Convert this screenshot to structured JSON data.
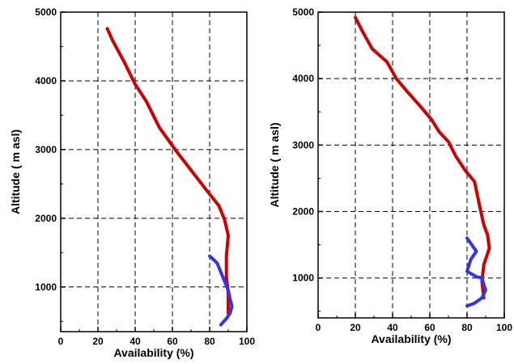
{
  "chart_data": [
    {
      "type": "line",
      "xlabel": "Availability (%)",
      "ylabel": "Altitude ( m asl)",
      "xlim": [
        0,
        100
      ],
      "ylim": [
        350,
        5000
      ],
      "xticks": [
        0,
        20,
        40,
        60,
        80,
        100
      ],
      "yticks": [
        1000,
        2000,
        3000,
        4000,
        5000
      ],
      "grid": true,
      "series": [
        {
          "color": "#cc0000",
          "points": [
            [
              25,
              4760
            ],
            [
              28,
              4580
            ],
            [
              34,
              4280
            ],
            [
              40,
              3950
            ],
            [
              46,
              3700
            ],
            [
              53,
              3320
            ],
            [
              62,
              2980
            ],
            [
              70,
              2700
            ],
            [
              78,
              2420
            ],
            [
              85,
              2180
            ],
            [
              88,
              1980
            ],
            [
              90,
              1750
            ],
            [
              89,
              1450
            ],
            [
              89,
              1150
            ],
            [
              90,
              900
            ],
            [
              90,
              800
            ],
            [
              90,
              620
            ]
          ]
        },
        {
          "color": "#3333ee",
          "points": [
            [
              80,
              1450
            ],
            [
              84,
              1350
            ],
            [
              87,
              1150
            ],
            [
              90,
              950
            ],
            [
              91,
              820
            ],
            [
              92,
              720
            ],
            [
              91,
              620
            ],
            [
              89,
              540
            ],
            [
              86,
              450
            ]
          ]
        }
      ]
    },
    {
      "type": "line",
      "xlabel": "Availability (%)",
      "ylabel": "Altitude ( m asl)",
      "xlim": [
        0,
        100
      ],
      "ylim": [
        400,
        5000
      ],
      "xticks": [
        0,
        20,
        40,
        60,
        80,
        100
      ],
      "yticks": [
        1000,
        2000,
        3000,
        4000,
        5000
      ],
      "grid": true,
      "series": [
        {
          "color": "#cc0000",
          "points": [
            [
              20,
              4920
            ],
            [
              24,
              4700
            ],
            [
              29,
              4450
            ],
            [
              37,
              4250
            ],
            [
              42,
              4000
            ],
            [
              48,
              3800
            ],
            [
              55,
              3580
            ],
            [
              61,
              3380
            ],
            [
              65,
              3200
            ],
            [
              70,
              3050
            ],
            [
              74,
              2830
            ],
            [
              79,
              2620
            ],
            [
              84,
              2450
            ],
            [
              87,
              2050
            ],
            [
              89,
              1800
            ],
            [
              91,
              1650
            ],
            [
              92,
              1450
            ],
            [
              89,
              1200
            ],
            [
              88,
              950
            ],
            [
              89,
              700
            ]
          ]
        },
        {
          "color": "#3333ee",
          "points": [
            [
              80,
              1600
            ],
            [
              85,
              1400
            ],
            [
              82,
              1280
            ],
            [
              80,
              1100
            ],
            [
              85,
              1020
            ],
            [
              88,
              1000
            ],
            [
              89,
              900
            ],
            [
              90,
              820
            ],
            [
              88,
              700
            ],
            [
              84,
              620
            ],
            [
              80,
              580
            ]
          ]
        }
      ]
    }
  ]
}
